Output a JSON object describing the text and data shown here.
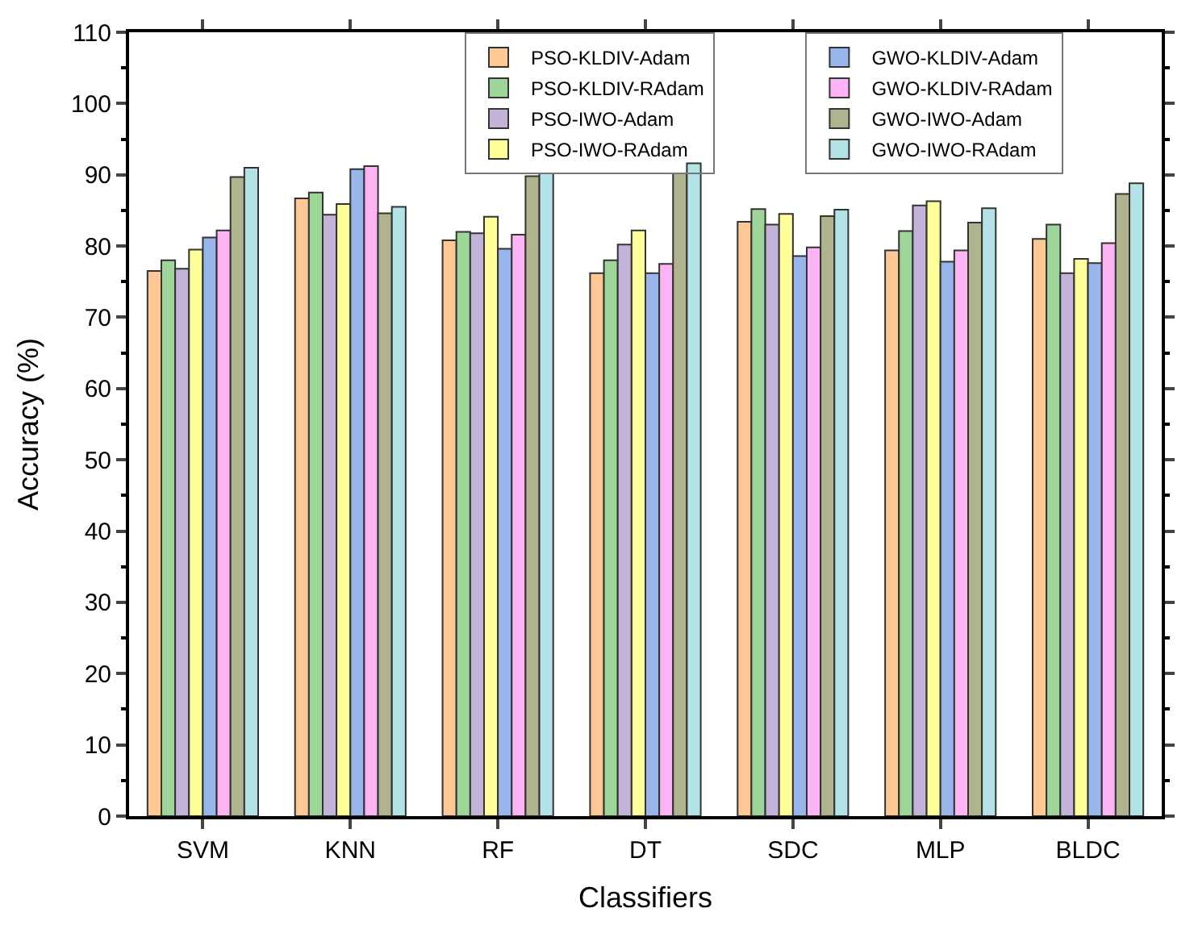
{
  "chart_data": {
    "type": "bar",
    "xlabel": "Classifiers",
    "ylabel": "Accuracy (%)",
    "categories": [
      "SVM",
      "KNN",
      "RF",
      "DT",
      "SDC",
      "MLP",
      "BLDC"
    ],
    "series": [
      {
        "name": "PSO-KLDIV-Adam",
        "color": "#fdc893",
        "values": [
          76.5,
          86.7,
          80.8,
          76.2,
          83.4,
          79.4,
          81.0
        ]
      },
      {
        "name": "PSO-KLDIV-RAdam",
        "color": "#9ed69a",
        "values": [
          78.0,
          87.5,
          82.0,
          78.0,
          85.2,
          82.1,
          83.0
        ]
      },
      {
        "name": "PSO-IWO-Adam",
        "color": "#c4b3d8",
        "values": [
          76.8,
          84.4,
          81.8,
          80.2,
          83.0,
          85.7,
          76.2
        ]
      },
      {
        "name": "PSO-IWO-RAdam",
        "color": "#ffff99",
        "values": [
          79.5,
          85.9,
          84.1,
          82.2,
          84.5,
          86.3,
          78.2
        ]
      },
      {
        "name": "GWO-KLDIV-Adam",
        "color": "#98b5ec",
        "values": [
          81.2,
          90.8,
          79.6,
          76.2,
          78.6,
          77.8,
          77.6
        ]
      },
      {
        "name": "GWO-KLDIV-RAdam",
        "color": "#fcb4f4",
        "values": [
          82.2,
          91.2,
          81.6,
          77.5,
          79.8,
          79.4,
          80.4
        ]
      },
      {
        "name": "GWO-IWO-Adam",
        "color": "#b0b48e",
        "values": [
          89.7,
          84.6,
          89.8,
          90.2,
          84.2,
          83.3,
          87.3
        ]
      },
      {
        "name": "GWO-IWO-RAdam",
        "color": "#b3e3e6",
        "values": [
          91.0,
          85.5,
          90.2,
          91.6,
          85.1,
          85.3,
          88.8
        ]
      }
    ],
    "ylim": [
      0,
      110
    ],
    "yticks": [
      0,
      10,
      20,
      30,
      40,
      50,
      60,
      70,
      80,
      90,
      100,
      110
    ],
    "legend": "top"
  }
}
